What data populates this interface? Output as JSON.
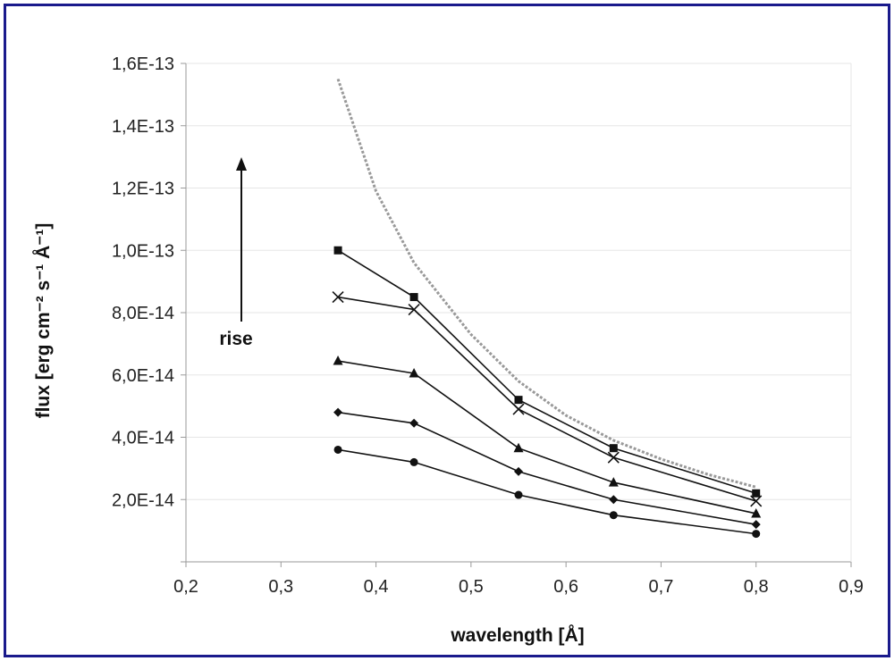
{
  "chart_data": {
    "type": "line",
    "title": "",
    "xlabel": "wavelength [Å]",
    "ylabel": "flux [erg cm⁻² s⁻¹ Å⁻¹]",
    "xlim": [
      0.2,
      0.9
    ],
    "ylim": [
      0,
      1.6e-13
    ],
    "x_ticks": [
      0.2,
      0.3,
      0.4,
      0.5,
      0.6,
      0.7,
      0.8,
      0.9
    ],
    "x_tick_labels": [
      "0,2",
      "0,3",
      "0,4",
      "0,5",
      "0,6",
      "0,7",
      "0,8",
      "0,9"
    ],
    "y_ticks": [
      2e-14,
      4e-14,
      6e-14,
      8e-14,
      1e-13,
      1.2e-13,
      1.4e-13,
      1.6e-13
    ],
    "y_tick_labels": [
      "2,0E-14",
      "4,0E-14",
      "6,0E-14",
      "8,0E-14",
      "1,0E-13",
      "1,2E-13",
      "1,4E-13",
      "1,6E-13"
    ],
    "grid": "horizontal",
    "annotation": {
      "text": "rise",
      "arrow": "up"
    },
    "dotted_curve": {
      "x": [
        0.36,
        0.4,
        0.44,
        0.5,
        0.55,
        0.6,
        0.65,
        0.7,
        0.75,
        0.8
      ],
      "y": [
        1.55e-13,
        1.19e-13,
        9.6e-14,
        7.3e-14,
        5.8e-14,
        4.7e-14,
        3.9e-14,
        3.3e-14,
        2.8e-14,
        2.4e-14
      ],
      "color": "#999999"
    },
    "x": [
      0.36,
      0.44,
      0.55,
      0.65,
      0.8
    ],
    "series": [
      {
        "marker": "square",
        "values": [
          1e-13,
          8.5e-14,
          5.2e-14,
          3.65e-14,
          2.2e-14
        ]
      },
      {
        "marker": "x",
        "values": [
          8.5e-14,
          8.1e-14,
          4.9e-14,
          3.35e-14,
          1.95e-14
        ]
      },
      {
        "marker": "triangle",
        "values": [
          6.45e-14,
          6.05e-14,
          3.65e-14,
          2.55e-14,
          1.55e-14
        ]
      },
      {
        "marker": "diamond",
        "values": [
          4.8e-14,
          4.45e-14,
          2.9e-14,
          2e-14,
          1.2e-14
        ]
      },
      {
        "marker": "circle",
        "values": [
          3.6e-14,
          3.2e-14,
          2.15e-14,
          1.5e-14,
          9e-15
        ]
      }
    ]
  }
}
